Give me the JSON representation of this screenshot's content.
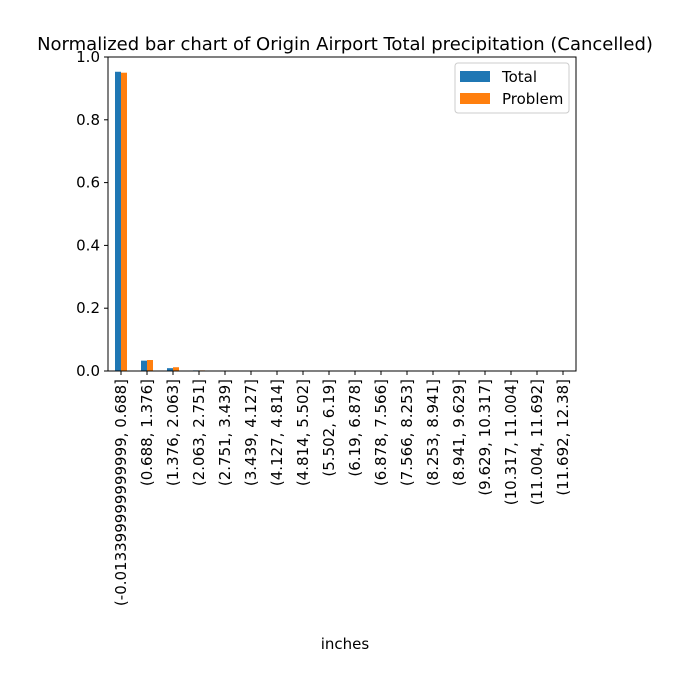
{
  "chart_data": {
    "type": "bar",
    "title": "Normalized bar chart of Origin Airport Total precipitation (Cancelled)",
    "xlabel": "inches",
    "ylabel": "",
    "ylim": [
      0,
      1.0
    ],
    "yticks": [
      "0.0",
      "0.2",
      "0.4",
      "0.6",
      "0.8",
      "1.0"
    ],
    "categories": [
      "(-0.013399999999999, 0.688]",
      "(0.688, 1.376]",
      "(1.376, 2.063]",
      "(2.063, 2.751]",
      "(2.751, 3.439]",
      "(3.439, 4.127]",
      "(4.127, 4.814]",
      "(4.814, 5.502]",
      "(5.502, 6.19]",
      "(6.19, 6.878]",
      "(6.878, 7.566]",
      "(7.566, 8.253]",
      "(8.253, 8.941]",
      "(8.941, 9.629]",
      "(9.629, 10.317]",
      "(10.317, 11.004]",
      "(11.004, 11.692]",
      "(11.692, 12.38]"
    ],
    "series": [
      {
        "name": "Total",
        "color": "#1f77b4",
        "values": [
          0.953,
          0.033,
          0.009,
          0.002,
          0.001,
          0.0005,
          0.0003,
          0.0002,
          0.0001,
          0.0001,
          0.0,
          0.0,
          0.0,
          0.0,
          0.0,
          0.0,
          0.0,
          0.0
        ]
      },
      {
        "name": "Problem",
        "color": "#ff7f0e",
        "values": [
          0.95,
          0.035,
          0.012,
          0.002,
          0.001,
          0.0005,
          0.0003,
          0.0002,
          0.0001,
          0.0001,
          0.0,
          0.0,
          0.0,
          0.0,
          0.0,
          0.0,
          0.0,
          0.0
        ]
      }
    ],
    "legend": {
      "placement": "top-right"
    },
    "grid": false
  }
}
